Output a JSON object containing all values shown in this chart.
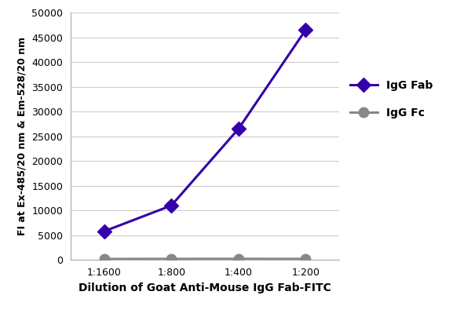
{
  "x_labels": [
    "1:1600",
    "1:800",
    "1:400",
    "1:200"
  ],
  "x_positions": [
    1,
    2,
    3,
    4
  ],
  "igg_fab_values": [
    5800,
    11000,
    26500,
    46500
  ],
  "igg_fc_values": [
    200,
    220,
    230,
    210
  ],
  "fab_color": "#3300AA",
  "fc_color": "#888888",
  "fab_label": "IgG Fab",
  "fc_label": "IgG Fc",
  "ylabel": "FI at Ex-485/20 nm & Em-528/20 nm",
  "xlabel": "Dilution of Goat Anti-Mouse IgG Fab-FITC",
  "ylim": [
    0,
    50000
  ],
  "yticks": [
    0,
    5000,
    10000,
    15000,
    20000,
    25000,
    30000,
    35000,
    40000,
    45000,
    50000
  ],
  "grid_color": "#cccccc",
  "background_color": "#ffffff",
  "line_width": 2.2,
  "marker_size": 9,
  "fab_marker": "D",
  "fc_marker": "o",
  "legend_fontsize": 10,
  "axis_label_fontsize": 10,
  "tick_fontsize": 9,
  "spine_color": "#aaaaaa"
}
